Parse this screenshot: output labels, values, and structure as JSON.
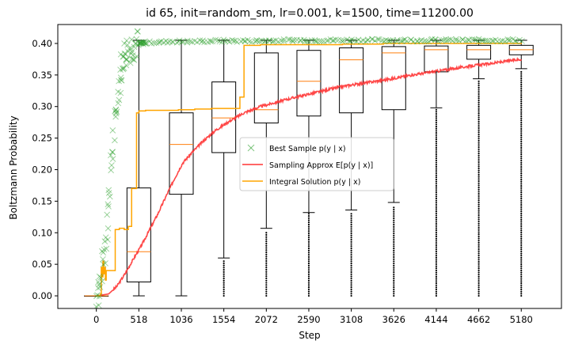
{
  "chart_data": {
    "type": "box+line+scatter",
    "title": "id 65, init=random_sm, lr=0.001, k=1500, time=11200.00",
    "xlabel": "Step",
    "ylabel": "Boltzmann Probability",
    "xlim": [
      -470,
      5670
    ],
    "ylim": [
      -0.02,
      0.43
    ],
    "x_ticks": [
      0,
      518,
      1036,
      1554,
      2072,
      2590,
      3108,
      3626,
      4144,
      4662,
      5180
    ],
    "y_ticks": [
      0.0,
      0.05,
      0.1,
      0.15,
      0.2,
      0.25,
      0.3,
      0.35,
      0.4
    ],
    "legend": {
      "placement": "center-right",
      "entries": [
        {
          "label": "Best Sample p(y | x)",
          "color": "#2ca02c",
          "marker": "x"
        },
        {
          "label": "Sampling Approx E[p(y | x)]",
          "color": "#ff3333",
          "marker": "line"
        },
        {
          "label": "Integral Solution p(y | x)",
          "color": "#ffa500",
          "marker": "line"
        }
      ]
    },
    "boxes": [
      {
        "x": 0,
        "whislo": 0.0,
        "q1": 0.0,
        "med": 0.0,
        "q3": 0.0,
        "whishi": 0.0
      },
      {
        "x": 518,
        "whislo": 0.0,
        "q1": 0.022,
        "med": 0.07,
        "q3": 0.171,
        "whishi": 0.405
      },
      {
        "x": 1036,
        "whislo": 0.0,
        "q1": 0.161,
        "med": 0.24,
        "q3": 0.29,
        "whishi": 0.405
      },
      {
        "x": 1554,
        "whislo": 0.06,
        "q1": 0.227,
        "med": 0.282,
        "q3": 0.339,
        "whishi": 0.405
      },
      {
        "x": 2072,
        "whislo": 0.107,
        "q1": 0.274,
        "med": 0.295,
        "q3": 0.385,
        "whishi": 0.405
      },
      {
        "x": 2590,
        "whislo": 0.132,
        "q1": 0.285,
        "med": 0.34,
        "q3": 0.389,
        "whishi": 0.405
      },
      {
        "x": 3108,
        "whislo": 0.136,
        "q1": 0.29,
        "med": 0.374,
        "q3": 0.393,
        "whishi": 0.405
      },
      {
        "x": 3626,
        "whislo": 0.148,
        "q1": 0.295,
        "med": 0.385,
        "q3": 0.395,
        "whishi": 0.405
      },
      {
        "x": 4144,
        "whislo": 0.298,
        "q1": 0.355,
        "med": 0.39,
        "q3": 0.396,
        "whishi": 0.405
      },
      {
        "x": 4662,
        "whislo": 0.344,
        "q1": 0.375,
        "med": 0.39,
        "q3": 0.397,
        "whishi": 0.405
      },
      {
        "x": 5180,
        "whislo": 0.36,
        "q1": 0.382,
        "med": 0.39,
        "q3": 0.397,
        "whishi": 0.405
      }
    ],
    "box_outliers": [
      {
        "x": 1554,
        "from": 0.0,
        "to": 0.055
      },
      {
        "x": 2072,
        "from": 0.0,
        "to": 0.1
      },
      {
        "x": 2590,
        "from": 0.0,
        "to": 0.13
      },
      {
        "x": 3108,
        "from": 0.0,
        "to": 0.13
      },
      {
        "x": 3626,
        "from": 0.0,
        "to": 0.14
      },
      {
        "x": 4144,
        "from": 0.0,
        "to": 0.295
      },
      {
        "x": 4662,
        "from": 0.0,
        "to": 0.34
      },
      {
        "x": 5180,
        "from": 0.0,
        "to": 0.355
      }
    ],
    "series": [
      {
        "name": "Sampling Approx E[p(y | x)]",
        "color": "#ff3333",
        "x": [
          0,
          150,
          250,
          350,
          450,
          550,
          650,
          750,
          850,
          950,
          1050,
          1150,
          1300,
          1450,
          1600,
          1800,
          2000,
          2200,
          2400,
          2600,
          2800,
          3000,
          3200,
          3400,
          3600,
          3800,
          4000,
          4200,
          4400,
          4600,
          4800,
          5000,
          5180
        ],
        "y": [
          0.0,
          0.003,
          0.015,
          0.035,
          0.058,
          0.08,
          0.105,
          0.13,
          0.158,
          0.185,
          0.21,
          0.225,
          0.245,
          0.262,
          0.275,
          0.29,
          0.3,
          0.307,
          0.314,
          0.32,
          0.326,
          0.332,
          0.336,
          0.34,
          0.344,
          0.349,
          0.353,
          0.357,
          0.361,
          0.365,
          0.368,
          0.372,
          0.375
        ]
      },
      {
        "name": "Integral Solution p(y | x)",
        "color": "#ffa500",
        "x": [
          0,
          50,
          60,
          70,
          80,
          90,
          100,
          110,
          120,
          140,
          160,
          200,
          230,
          280,
          340,
          390,
          430,
          490,
          520,
          600,
          700,
          800,
          1000,
          1200,
          1400,
          1600,
          1700,
          1750,
          1800,
          2000,
          2500,
          3000,
          3500,
          4000,
          4500,
          5180
        ],
        "y": [
          0.0,
          0.003,
          0.045,
          0.03,
          0.055,
          0.035,
          0.045,
          0.025,
          0.04,
          0.04,
          0.04,
          0.04,
          0.105,
          0.107,
          0.105,
          0.11,
          0.17,
          0.29,
          0.293,
          0.294,
          0.294,
          0.294,
          0.295,
          0.296,
          0.297,
          0.297,
          0.297,
          0.315,
          0.397,
          0.398,
          0.398,
          0.399,
          0.4,
          0.4,
          0.4,
          0.401
        ]
      },
      {
        "name": "Best Sample p(y | x)",
        "color": "#2ca02c",
        "marker": "x",
        "x": [
          0,
          30,
          60,
          90,
          120,
          150,
          180,
          210,
          240,
          270,
          300,
          340,
          380,
          420,
          470,
          520,
          600,
          700,
          800,
          900,
          1000,
          1200,
          1400,
          1600,
          1800,
          2000,
          2400,
          2800,
          3200,
          3600,
          4000,
          4400,
          4800,
          5180
        ],
        "y": [
          0.0,
          0.01,
          0.03,
          0.06,
          0.1,
          0.15,
          0.2,
          0.25,
          0.29,
          0.33,
          0.36,
          0.38,
          0.39,
          0.395,
          0.398,
          0.4,
          0.401,
          0.402,
          0.402,
          0.403,
          0.403,
          0.403,
          0.404,
          0.404,
          0.404,
          0.404,
          0.405,
          0.405,
          0.405,
          0.405,
          0.405,
          0.405,
          0.405,
          0.405
        ]
      }
    ]
  }
}
